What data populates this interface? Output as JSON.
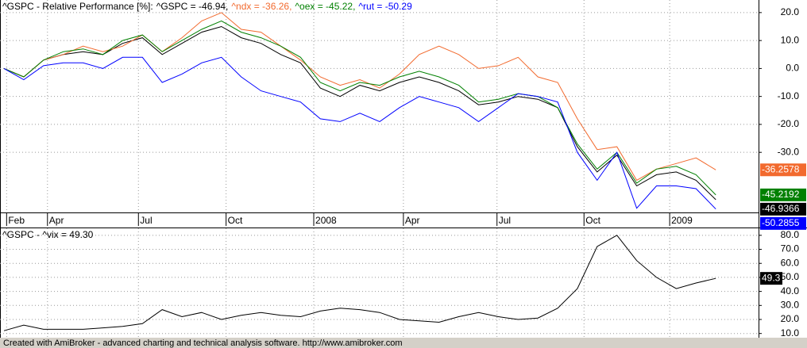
{
  "chart_data": [
    {
      "type": "line",
      "title": "^GSPC - Relative Performance [%]:",
      "x": [
        0,
        3,
        6,
        9,
        12,
        15,
        18,
        21,
        24,
        27,
        30,
        33,
        36,
        39,
        42,
        45,
        48,
        51,
        54,
        57,
        60,
        63,
        66,
        69,
        72,
        75,
        78,
        81,
        84,
        87,
        90,
        93,
        96,
        99,
        102,
        105,
        108
      ],
      "xlim": [
        0,
        114
      ],
      "xticks": [
        {
          "value": 0.4,
          "label": "Feb"
        },
        {
          "value": 6.6,
          "label": "Apr"
        },
        {
          "value": 20.4,
          "label": "Jul"
        },
        {
          "value": 33.7,
          "label": "Oct"
        },
        {
          "value": 47,
          "label": "2008"
        },
        {
          "value": 60.6,
          "label": "Apr"
        },
        {
          "value": 74.8,
          "label": "Jul"
        },
        {
          "value": 88,
          "label": "Oct"
        },
        {
          "value": 101,
          "label": "2009"
        }
      ],
      "ylim": [
        -51.5,
        24.5
      ],
      "yticks": [
        {
          "value": 20,
          "label": "20.0"
        },
        {
          "value": 10,
          "label": "10.0"
        },
        {
          "value": 0,
          "label": "0.0"
        },
        {
          "value": -10,
          "label": "-10.0"
        },
        {
          "value": -20,
          "label": "-20.0"
        },
        {
          "value": -30,
          "label": "-30.0"
        }
      ],
      "grid": true,
      "series": [
        {
          "name": "^GSPC",
          "legend": "^GSPC = -46.94,",
          "marker_label": "-46.9366",
          "color": "#000000",
          "values": [
            0,
            -3,
            3,
            5,
            6,
            5,
            9,
            11,
            5,
            9,
            13,
            15,
            11,
            9,
            5,
            2,
            -7,
            -10,
            -6,
            -8,
            -5,
            -3,
            -5,
            -8,
            -13,
            -12,
            -10,
            -11,
            -14,
            -28,
            -37,
            -31,
            -42,
            -38,
            -37,
            -40,
            -46.9366
          ]
        },
        {
          "name": "^ndx",
          "legend": "^ndx = -36.26,",
          "marker_label": "-36.2578",
          "color": "#f26a2e",
          "values": [
            0,
            -3,
            3,
            5,
            8,
            6,
            8,
            12,
            6,
            11,
            17,
            20,
            14,
            13,
            8,
            3,
            -3,
            -6,
            -4,
            -7,
            -2,
            5,
            8,
            5,
            0,
            1,
            4,
            -3,
            -5,
            -18,
            -29,
            -28,
            -40,
            -36,
            -34,
            -32,
            -36.2578
          ]
        },
        {
          "name": "^oex",
          "legend": "^oex = -45.22,",
          "marker_label": "-45.2192",
          "color": "#008000",
          "values": [
            0,
            -3,
            3,
            6,
            7,
            5,
            10,
            12,
            6,
            10,
            14,
            17,
            13,
            11,
            8,
            4,
            -5,
            -8,
            -5,
            -6,
            -3,
            -1,
            -3,
            -6,
            -12,
            -11,
            -9,
            -10,
            -14,
            -27,
            -36,
            -30,
            -41,
            -36,
            -35,
            -38,
            -45.2192
          ]
        },
        {
          "name": "^rut",
          "legend": "^rut = -50.29",
          "marker_label": "-50.2855",
          "color": "#0000ff",
          "values": [
            0,
            -4,
            1,
            2,
            2,
            0,
            4,
            4,
            -5,
            -2,
            2,
            4,
            -3,
            -8,
            -10,
            -12,
            -18,
            -19,
            -16,
            -19,
            -14,
            -10,
            -12,
            -14,
            -19,
            -14,
            -9,
            -10,
            -12,
            -30,
            -40,
            -30,
            -50,
            -42,
            -42,
            -43,
            -50.2855
          ]
        }
      ]
    },
    {
      "type": "line",
      "title": "^GSPC - ",
      "x": [
        0,
        3,
        6,
        9,
        12,
        15,
        18,
        21,
        24,
        27,
        30,
        33,
        36,
        39,
        42,
        45,
        48,
        51,
        54,
        57,
        60,
        63,
        66,
        69,
        72,
        75,
        78,
        81,
        84,
        87,
        90,
        93,
        96,
        99,
        102,
        105,
        108
      ],
      "xlim": [
        0,
        114
      ],
      "ylim": [
        7,
        85
      ],
      "yticks": [
        {
          "value": 80,
          "label": "80.0"
        },
        {
          "value": 70,
          "label": "70.0"
        },
        {
          "value": 60,
          "label": "60.0"
        },
        {
          "value": 50,
          "label": "50.0"
        },
        {
          "value": 40,
          "label": "40.0"
        },
        {
          "value": 30,
          "label": "30.0"
        },
        {
          "value": 20,
          "label": "20.0"
        },
        {
          "value": 10,
          "label": "10.0"
        }
      ],
      "grid": true,
      "series": [
        {
          "name": "^vix",
          "legend": "^vix = 49.30",
          "marker_label": "49.3",
          "color": "#000000",
          "values": [
            12,
            16,
            13,
            13,
            13,
            14,
            15,
            17,
            27,
            22,
            25,
            20,
            23,
            25,
            23,
            22,
            26,
            28,
            27,
            25,
            20,
            19,
            18,
            22,
            25,
            22,
            20,
            21,
            28,
            42,
            72,
            80,
            62,
            50,
            42,
            46,
            49.3
          ]
        }
      ]
    }
  ],
  "footer": "Created with AmiBroker - advanced charting and technical analysis software. http://www.amibroker.com"
}
